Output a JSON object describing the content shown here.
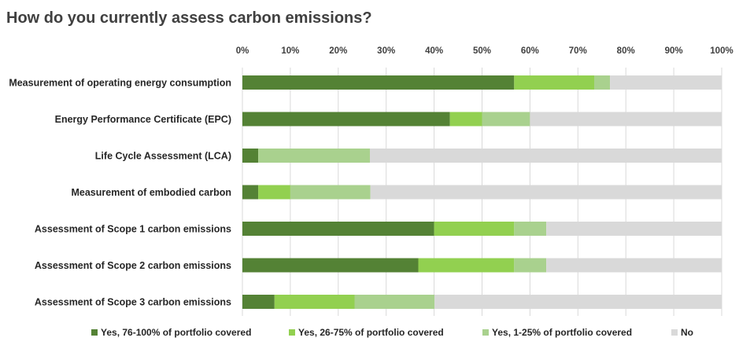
{
  "chart_data": {
    "type": "bar",
    "orientation": "horizontal",
    "stacked": "percent",
    "title": "How do you currently assess carbon emissions?",
    "xlabel": "",
    "ylabel": "",
    "xlim": [
      0,
      100
    ],
    "x_ticks": [
      "0%",
      "10%",
      "20%",
      "30%",
      "40%",
      "50%",
      "60%",
      "70%",
      "80%",
      "90%",
      "100%"
    ],
    "grid": "vertical",
    "legend_position": "bottom",
    "categories": [
      "Measurement of operating energy consumption",
      "Energy Performance Certificate (EPC)",
      "Life Cycle Assessment (LCA)",
      "Measurement of embodied carbon",
      "Assessment of Scope 1 carbon emissions",
      "Assessment of Scope 2 carbon emissions",
      "Assessment of Scope 3 carbon emissions"
    ],
    "series": [
      {
        "name": "Yes, 76-100% of portfolio covered",
        "color": "#548235",
        "values": [
          56.7,
          43.3,
          3.3,
          3.3,
          40.0,
          36.7,
          6.7
        ]
      },
      {
        "name": "Yes, 26-75% of portfolio covered",
        "color": "#92d050",
        "values": [
          16.7,
          6.7,
          0.0,
          6.7,
          16.7,
          20.0,
          16.7
        ]
      },
      {
        "name": "Yes, 1-25% of portfolio covered",
        "color": "#a9d18e",
        "values": [
          3.3,
          10.0,
          23.3,
          16.7,
          6.7,
          6.7,
          16.7
        ]
      },
      {
        "name": "No",
        "color": "#d9d9d9",
        "values": [
          23.3,
          40.0,
          73.4,
          73.3,
          36.6,
          36.6,
          59.9
        ]
      }
    ]
  }
}
